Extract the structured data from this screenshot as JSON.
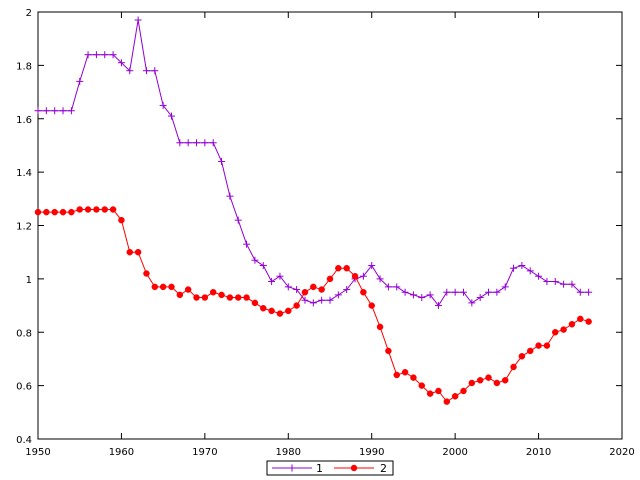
{
  "chart_data": {
    "type": "line",
    "title": "",
    "xlabel": "",
    "ylabel": "",
    "xlim": [
      1950,
      2020
    ],
    "ylim": [
      0.4,
      2
    ],
    "xticks": [
      1950,
      1960,
      1970,
      1980,
      1990,
      2000,
      2010,
      2020
    ],
    "yticks": [
      0.4,
      0.6,
      0.8,
      1,
      1.2,
      1.4,
      1.6,
      1.8,
      2
    ],
    "xtick_labels": [
      "1950",
      "1960",
      "1970",
      "1980",
      "1990",
      "2000",
      "2010",
      "2020"
    ],
    "ytick_labels": [
      "0.4",
      "0.6",
      "0.8",
      "1",
      "1.2",
      "1.4",
      "1.6",
      "1.8",
      "2"
    ],
    "grid": false,
    "legend_position": "bottom-center",
    "x": [
      1950,
      1951,
      1952,
      1953,
      1954,
      1955,
      1956,
      1957,
      1958,
      1959,
      1960,
      1961,
      1962,
      1963,
      1964,
      1965,
      1966,
      1967,
      1968,
      1969,
      1970,
      1971,
      1972,
      1973,
      1974,
      1975,
      1976,
      1977,
      1978,
      1979,
      1980,
      1981,
      1982,
      1983,
      1984,
      1985,
      1986,
      1987,
      1988,
      1989,
      1990,
      1991,
      1992,
      1993,
      1994,
      1995,
      1996,
      1997,
      1998,
      1999,
      2000,
      2001,
      2002,
      2003,
      2004,
      2005,
      2006,
      2007,
      2008,
      2009,
      2010,
      2011,
      2012,
      2013,
      2014,
      2015,
      2016
    ],
    "series": [
      {
        "name": "1",
        "color": "#9400d3",
        "marker": "plus",
        "values": [
          1.63,
          1.63,
          1.63,
          1.63,
          1.63,
          1.74,
          1.84,
          1.84,
          1.84,
          1.84,
          1.81,
          1.78,
          1.97,
          1.78,
          1.78,
          1.65,
          1.61,
          1.51,
          1.51,
          1.51,
          1.51,
          1.51,
          1.44,
          1.31,
          1.22,
          1.13,
          1.07,
          1.05,
          0.99,
          1.01,
          0.97,
          0.96,
          0.92,
          0.91,
          0.92,
          0.92,
          0.94,
          0.96,
          1.0,
          1.01,
          1.05,
          1.0,
          0.97,
          0.97,
          0.95,
          0.94,
          0.93,
          0.94,
          0.9,
          0.95,
          0.95,
          0.95,
          0.91,
          0.93,
          0.95,
          0.95,
          0.97,
          1.04,
          1.05,
          1.03,
          1.01,
          0.99,
          0.99,
          0.98,
          0.98,
          0.95,
          0.95
        ]
      },
      {
        "name": "2",
        "color": "#ff0000",
        "marker": "circle",
        "values": [
          1.25,
          1.25,
          1.25,
          1.25,
          1.25,
          1.26,
          1.26,
          1.26,
          1.26,
          1.26,
          1.22,
          1.1,
          1.1,
          1.02,
          0.97,
          0.97,
          0.97,
          0.94,
          0.96,
          0.93,
          0.93,
          0.95,
          0.94,
          0.93,
          0.93,
          0.93,
          0.91,
          0.89,
          0.88,
          0.87,
          0.88,
          0.9,
          0.95,
          0.97,
          0.96,
          1.0,
          1.04,
          1.04,
          1.01,
          0.95,
          0.9,
          0.82,
          0.73,
          0.64,
          0.65,
          0.63,
          0.6,
          0.57,
          0.58,
          0.54,
          0.56,
          0.58,
          0.61,
          0.62,
          0.63,
          0.61,
          0.62,
          0.67,
          0.71,
          0.73,
          0.75,
          0.75,
          0.8,
          0.81,
          0.83,
          0.85,
          0.84
        ]
      }
    ]
  }
}
